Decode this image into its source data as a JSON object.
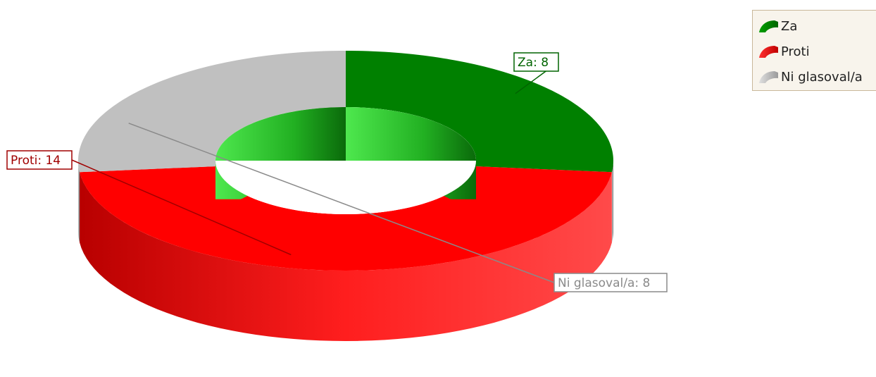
{
  "chart_data": {
    "type": "pie",
    "style": "3d-doughnut",
    "title": "",
    "series": [
      {
        "name": "Za",
        "value": 8,
        "label": "Za: 8",
        "color": "#008000",
        "label_color": "#006400"
      },
      {
        "name": "Proti",
        "value": 14,
        "label": "Proti: 14",
        "color": "#ff0000",
        "label_color": "#a00000"
      },
      {
        "name": "Ni glasoval/a",
        "value": 8,
        "label": "Ni glasoval/a: 8",
        "color": "#c0c0c0",
        "label_color": "#8a8a8a"
      }
    ],
    "legend": {
      "placement": "top-right",
      "items": [
        "Za",
        "Proti",
        "Ni glasoval/a"
      ]
    }
  }
}
